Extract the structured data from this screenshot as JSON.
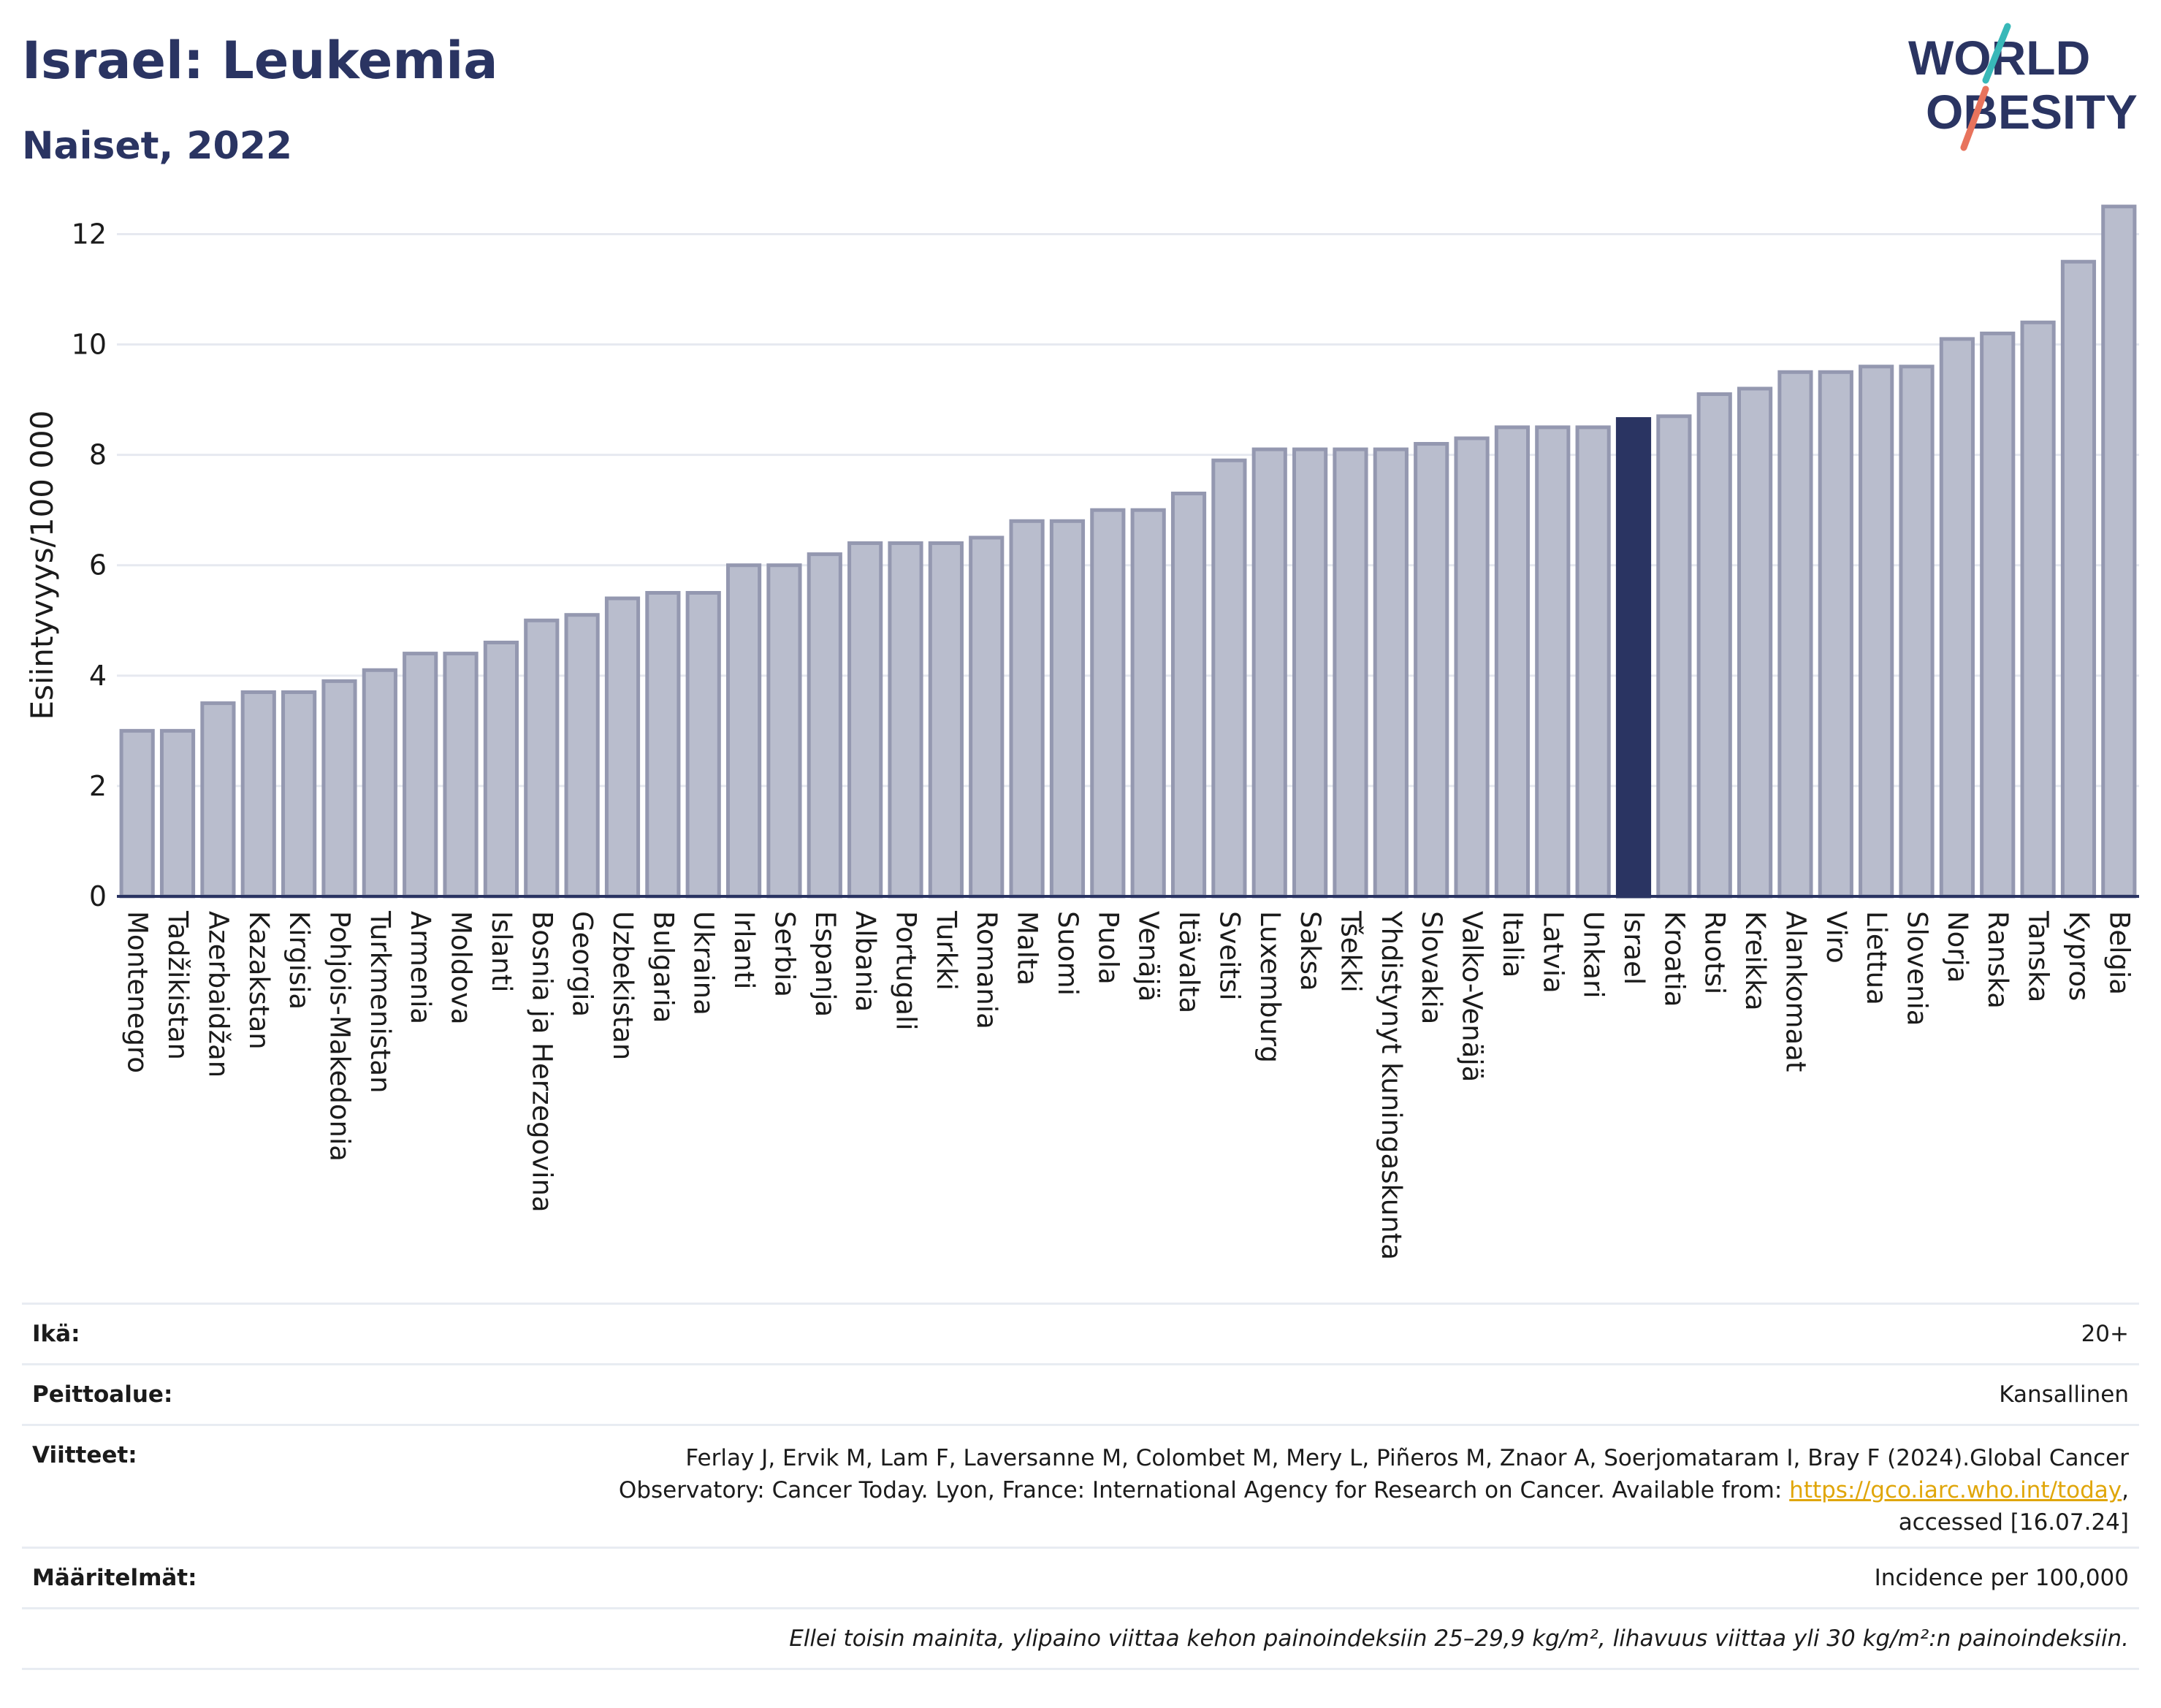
{
  "header": {
    "title": "Israel: Leukemia",
    "subtitle": "Naiset, 2022"
  },
  "logo": {
    "line1": "WORLD",
    "line2": "OBESITY"
  },
  "colors": {
    "bar_fill": "#b9bdcd",
    "bar_stroke": "#9498b0",
    "highlight": "#2a3462",
    "grid": "#e6e9f0",
    "logo_navy": "#2a3462",
    "logo_teal": "#38b8b8",
    "logo_coral": "#e8735c"
  },
  "chart_data": {
    "type": "bar",
    "ylabel": "Esiintyvyys/100 000",
    "ylim": [
      0,
      12.8
    ],
    "yticks": [
      0,
      2,
      4,
      6,
      8,
      10,
      12
    ],
    "grid": true,
    "highlight": "Israel",
    "categories": [
      "Montenegro",
      "Tadžikistan",
      "Azerbaidžan",
      "Kazakstan",
      "Kirgisia",
      "Pohjois-Makedonia",
      "Turkmenistan",
      "Armenia",
      "Moldova",
      "Islanti",
      "Bosnia ja Herzegovina",
      "Georgia",
      "Uzbekistan",
      "Bulgaria",
      "Ukraina",
      "Irlanti",
      "Serbia",
      "Espanja",
      "Albania",
      "Portugali",
      "Turkki",
      "Romania",
      "Malta",
      "Suomi",
      "Puola",
      "Venäjä",
      "Itävalta",
      "Sveitsi",
      "Luxemburg",
      "Saksa",
      "Tšekki",
      "Yhdistynyt kuningaskunta",
      "Slovakia",
      "Valko-Venäjä",
      "Italia",
      "Latvia",
      "Unkari",
      "Israel",
      "Kroatia",
      "Ruotsi",
      "Kreikka",
      "Alankomaat",
      "Viro",
      "Liettua",
      "Slovenia",
      "Norja",
      "Ranska",
      "Tanska",
      "Kypros",
      "Belgia"
    ],
    "values": [
      3.0,
      3.0,
      3.5,
      3.7,
      3.7,
      3.9,
      4.1,
      4.4,
      4.4,
      4.6,
      5.0,
      5.1,
      5.4,
      5.5,
      5.5,
      6.0,
      6.0,
      6.2,
      6.4,
      6.4,
      6.4,
      6.5,
      6.8,
      6.8,
      7.0,
      7.0,
      7.3,
      7.9,
      8.1,
      8.1,
      8.1,
      8.1,
      8.2,
      8.3,
      8.5,
      8.5,
      8.5,
      8.65,
      8.7,
      9.1,
      9.2,
      9.5,
      9.5,
      9.6,
      9.6,
      10.1,
      10.2,
      10.4,
      11.5,
      12.5
    ]
  },
  "footer": {
    "rows": [
      {
        "key": "Ikä:",
        "value": "20+"
      },
      {
        "key": "Peittoalue:",
        "value": "Kansallinen"
      },
      {
        "key": "Viitteet:",
        "value_line1": "Ferlay J, Ervik M, Lam F, Laversanne M, Colombet M, Mery L, Piñeros M, Znaor A, Soerjomataram I, Bray F (2024).Global Cancer",
        "value_line2_pre": "Observatory: Cancer Today. Lyon, France: International Agency for Research on Cancer. Available from: ",
        "value_link": "https://gco.iarc.who.int/today",
        "value_line2_post": ",",
        "value_line3": "accessed [16.07.24]"
      },
      {
        "key": "Määritelmät:",
        "value": "Incidence per 100,000"
      }
    ],
    "note": "Ellei toisin mainita, ylipaino viittaa kehon painoindeksiin 25–29,9 kg/m², lihavuus viittaa yli 30 kg/m²:n painoindeksiin."
  }
}
